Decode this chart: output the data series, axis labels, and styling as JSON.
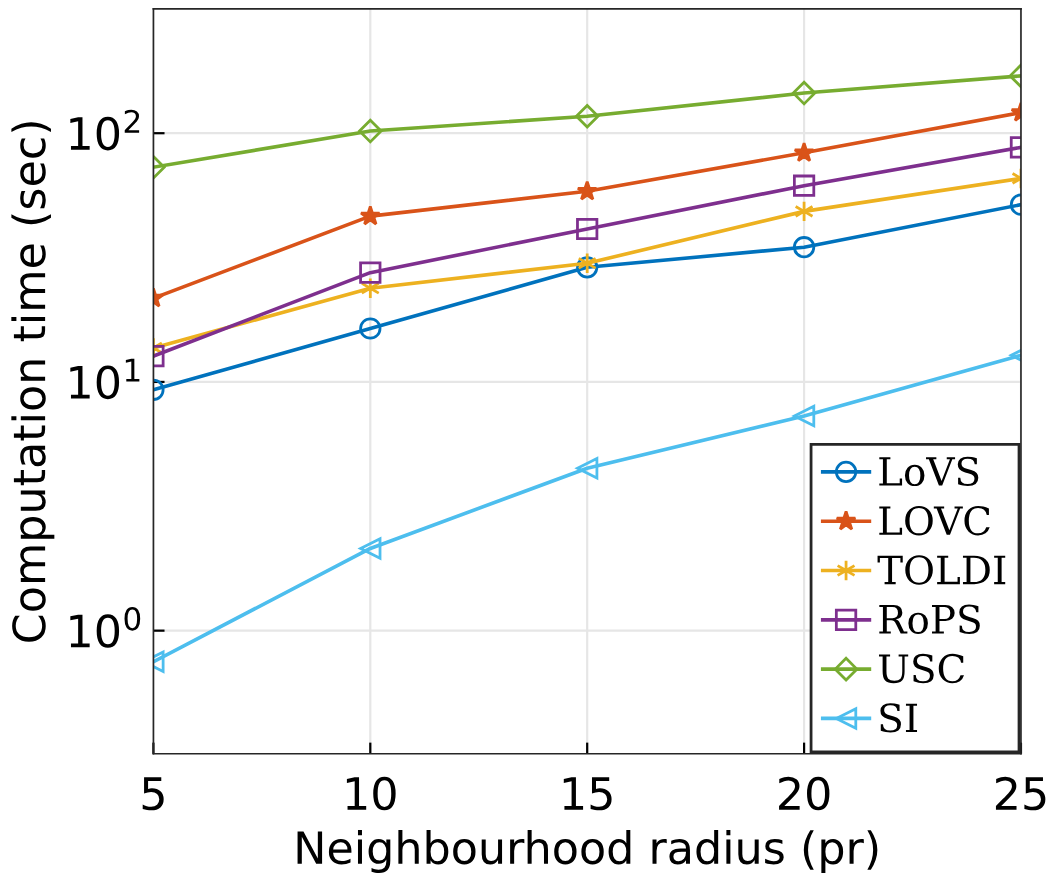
{
  "chart_data": {
    "type": "line",
    "xlabel": "Neighbourhood radius (pr)",
    "ylabel": "Computation time (sec)",
    "x": [
      5,
      10,
      15,
      20,
      25
    ],
    "series": [
      {
        "name": "LoVS",
        "color": "#0072bd",
        "marker": "circle",
        "values": [
          9.3,
          16.4,
          28.9,
          34.8,
          51.6
        ]
      },
      {
        "name": "LOVC",
        "color": "#d95319",
        "marker": "star",
        "values": [
          21.7,
          46.4,
          58.4,
          83.4,
          121
        ]
      },
      {
        "name": "TOLDI",
        "color": "#edb120",
        "marker": "cross",
        "values": [
          13.7,
          23.8,
          30,
          48.5,
          65.8
        ]
      },
      {
        "name": "RoPS",
        "color": "#7e2f8e",
        "marker": "square",
        "values": [
          12.7,
          27.5,
          41.2,
          61.5,
          87.7
        ]
      },
      {
        "name": "USC",
        "color": "#77ac30",
        "marker": "diamond",
        "values": [
          73,
          102,
          117,
          145,
          170
        ]
      },
      {
        "name": "SI",
        "color": "#4dbeee",
        "marker": "triangle",
        "values": [
          0.75,
          2.14,
          4.5,
          7.3,
          12.8
        ]
      }
    ],
    "log": "y",
    "xlim": [
      5,
      25
    ],
    "xticks": [
      5,
      10,
      15,
      20,
      25
    ],
    "ylim": [
      0.32,
      316
    ],
    "yticks": [
      {
        "value": 1,
        "label": "10$^{0}$"
      },
      {
        "value": 10,
        "label": "10$^{1}$"
      },
      {
        "value": 100,
        "label": "10$^{2}$"
      }
    ],
    "grid": true,
    "legend": "bottom right",
    "line_style": "solid"
  }
}
